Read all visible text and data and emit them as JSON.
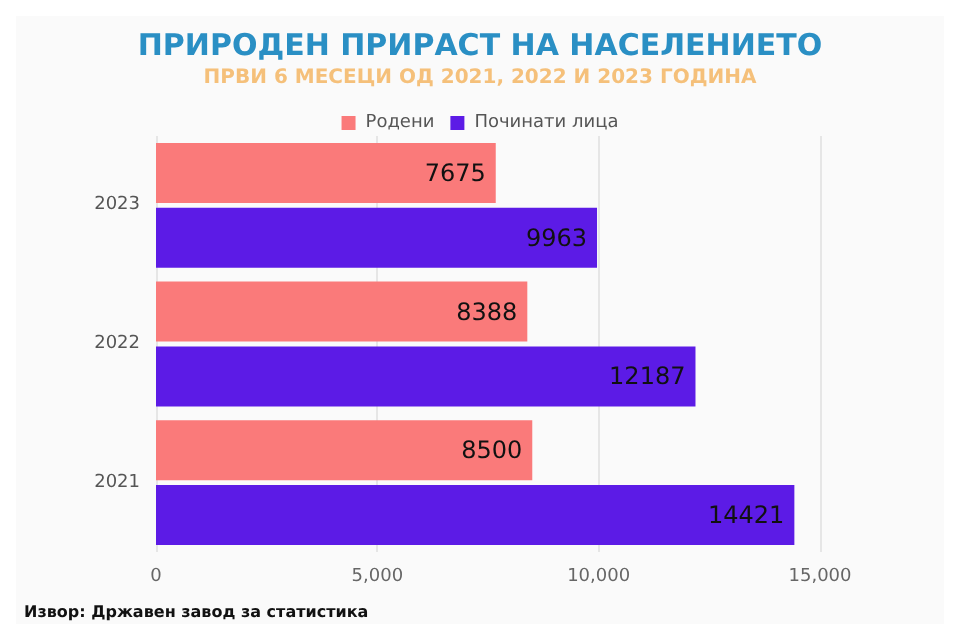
{
  "chart_data": {
    "type": "bar",
    "orientation": "horizontal",
    "title": "ПРИРОДЕН ПРИРАСТ НА НАСЕЛЕНИЕТО",
    "subtitle": "ПРВИ 6 МЕСЕЦИ ОД 2021, 2022 И 2023 ГОДИНА",
    "categories": [
      "2023",
      "2022",
      "2021"
    ],
    "series": [
      {
        "name": "Родени",
        "color": "#fa7a7a",
        "values": [
          7675,
          8388,
          8500
        ]
      },
      {
        "name": "Починати лица",
        "color": "#5c1be6",
        "values": [
          9963,
          12187,
          14421
        ]
      }
    ],
    "xlim": [
      0,
      15000
    ],
    "xticks": [
      0,
      {
        "value": 5000,
        "label": "5,000"
      },
      {
        "value": 10000,
        "label": "10,000"
      },
      {
        "value": 15000,
        "label": "15,000"
      }
    ],
    "grid": "x",
    "legend": "top",
    "data_labels": true,
    "annotations": [
      "Извор: Државен завод за статистика"
    ]
  }
}
